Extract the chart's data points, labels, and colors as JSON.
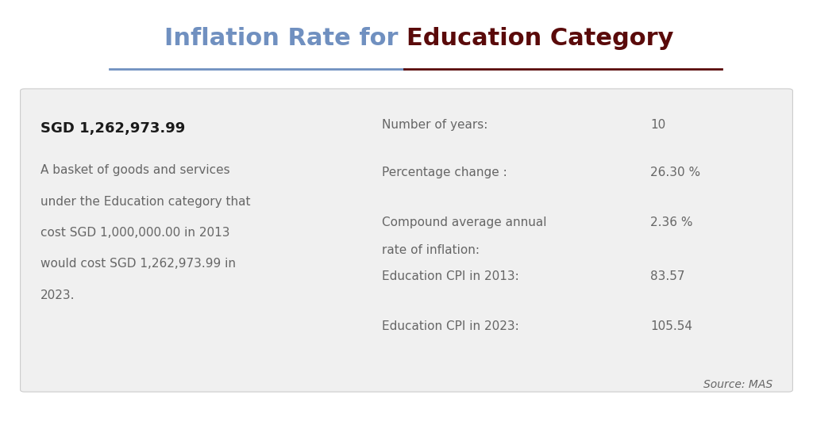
{
  "title_part1": "Inflation Rate for ",
  "title_part2": "Education Category",
  "title_color1": "#7090c0",
  "title_color2": "#5a0a0a",
  "title_fontsize": 22,
  "bg_color": "#ffffff",
  "card_bg_color": "#f0f0f0",
  "sgd_amount": "SGD 1,262,973.99",
  "description_lines": [
    "A basket of goods and services",
    "under the Education category that",
    "cost SGD 1,000,000.00 in 2013",
    "would cost SGD 1,262,973.99 in",
    "2023."
  ],
  "stats": [
    {
      "label1": "Number of years:",
      "label2": "",
      "value": "10"
    },
    {
      "label1": "Percentage change :",
      "label2": "",
      "value": "26.30 %"
    },
    {
      "label1": "Compound average annual",
      "label2": "rate of inflation:",
      "value": "2.36 %"
    },
    {
      "label1": "Education CPI in 2013:",
      "label2": "",
      "value": "83.57"
    },
    {
      "label1": "Education CPI in 2023:",
      "label2": "",
      "value": "105.54"
    }
  ],
  "source_text": "Source: MAS",
  "text_color": "#666666",
  "bold_text_color": "#1a1a1a",
  "card_border_color": "#cccccc"
}
